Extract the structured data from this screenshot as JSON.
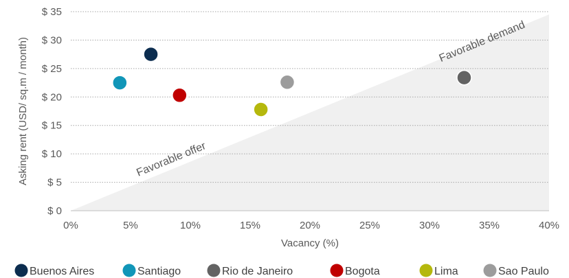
{
  "chart_data": {
    "type": "scatter",
    "xlabel": "Vacancy (%)",
    "ylabel": "Asking rent (USD/ sq.m / month)",
    "xlim": [
      0,
      40
    ],
    "ylim": [
      0,
      35
    ],
    "x_ticks": [
      0,
      5,
      10,
      15,
      20,
      25,
      30,
      35,
      40
    ],
    "x_tick_labels": [
      "0%",
      "5%",
      "10%",
      "15%",
      "20%",
      "25%",
      "30%",
      "35%",
      "40%"
    ],
    "y_ticks": [
      0,
      5,
      10,
      15,
      20,
      25,
      30,
      35
    ],
    "y_tick_labels": [
      "$ 0",
      "$ 5",
      "$ 10",
      "$ 15",
      "$ 20",
      "$ 25",
      "$ 30",
      "$ 35"
    ],
    "grid": "horizontal dotted",
    "legend_position": "bottom",
    "shaded_region": {
      "from": [
        0,
        0
      ],
      "to": [
        40,
        34.5
      ],
      "color": "#f0f0f0",
      "side": "below"
    },
    "annotations": [
      {
        "text": "Favorable offer",
        "x": 8.5,
        "y": 8.5
      },
      {
        "text": "Favorable demand",
        "x": 34.5,
        "y": 29.2
      }
    ],
    "series": [
      {
        "name": "Buenos Aires",
        "x": 6.7,
        "y": 27.5,
        "color": "#0c2d4f"
      },
      {
        "name": "Santiago",
        "x": 4.1,
        "y": 22.5,
        "color": "#1196b8"
      },
      {
        "name": "Rio de Janeiro",
        "x": 32.9,
        "y": 23.4,
        "color": "#636363"
      },
      {
        "name": "Bogota",
        "x": 9.1,
        "y": 20.3,
        "color": "#c00000"
      },
      {
        "name": "Lima",
        "x": 15.9,
        "y": 17.8,
        "color": "#b5b80d"
      },
      {
        "name": "Sao Paulo",
        "x": 18.1,
        "y": 22.6,
        "color": "#9c9c9c"
      }
    ]
  }
}
